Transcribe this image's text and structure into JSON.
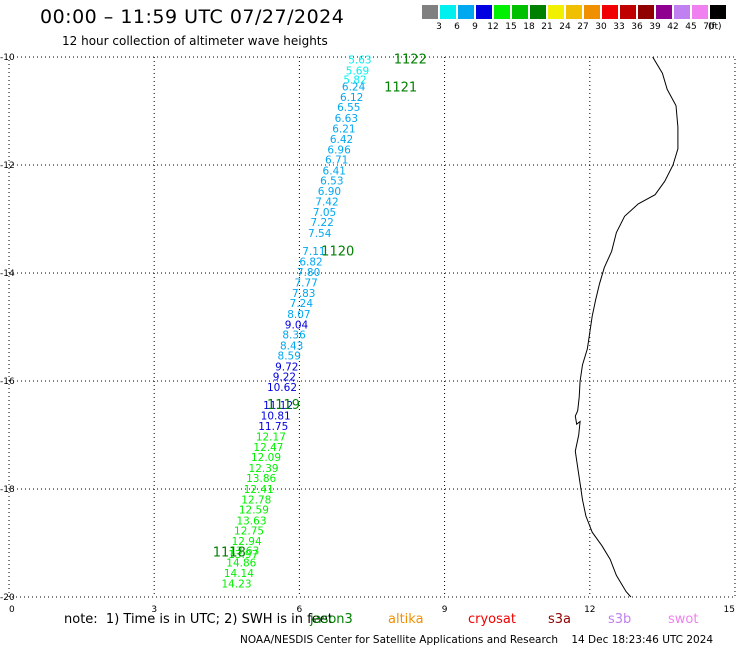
{
  "title": "00:00 – 11:59 UTC 07/27/2024",
  "subtitle": "12 hour collection of altimeter wave heights",
  "legend": {
    "colors": [
      "#808080",
      "#00f0f0",
      "#00a8f0",
      "#0000e0",
      "#00f000",
      "#00c000",
      "#008000",
      "#f0f000",
      "#f0c000",
      "#f09000",
      "#f00000",
      "#c00000",
      "#900000",
      "#900090",
      "#c080f0",
      "#f080f0",
      "#000000"
    ],
    "labels": [
      "3",
      "6",
      "9",
      "12",
      "15",
      "18",
      "21",
      "24",
      "27",
      "30",
      "33",
      "36",
      "39",
      "42",
      "45",
      "70"
    ],
    "unit": "(ft)"
  },
  "note": "note:  1) Time is in UTC; 2) SWH is in feet",
  "satellites": [
    {
      "name": "jason3",
      "color": "#008000"
    },
    {
      "name": "altika",
      "color": "#f09000"
    },
    {
      "name": "cryosat",
      "color": "#f00000"
    },
    {
      "name": "s3a",
      "color": "#900000"
    },
    {
      "name": "s3b",
      "color": "#c080f0"
    },
    {
      "name": "swot",
      "color": "#f080f0"
    }
  ],
  "credit": "NOAA/NESDIS Center for Satellite Applications and Research    14 Dec 18:23:46 UTC 2024",
  "chart_data": {
    "type": "scatter",
    "x_ticks": [
      "0",
      "3",
      "6",
      "9",
      "12",
      "15"
    ],
    "y_ticks": [
      "-10",
      "-12",
      "-14",
      "-16",
      "-18",
      "-20"
    ],
    "xlim": [
      0,
      15
    ],
    "ylim": [
      -20,
      -10
    ],
    "grid": true,
    "points": [
      {
        "lon": 7.25,
        "lat": -10.05,
        "swh": "5.63"
      },
      {
        "lon": 7.2,
        "lat": -10.25,
        "swh": "5.69"
      },
      {
        "lon": 7.15,
        "lat": -10.42,
        "swh": "5.82"
      },
      {
        "lon": 7.12,
        "lat": -10.55,
        "swh": "6.24"
      },
      {
        "lon": 7.08,
        "lat": -10.74,
        "swh": "6.12"
      },
      {
        "lon": 7.02,
        "lat": -10.93,
        "swh": "6.55"
      },
      {
        "lon": 6.97,
        "lat": -11.13,
        "swh": "6.63"
      },
      {
        "lon": 6.92,
        "lat": -11.32,
        "swh": "6.21"
      },
      {
        "lon": 6.87,
        "lat": -11.52,
        "swh": "6.42"
      },
      {
        "lon": 6.82,
        "lat": -11.71,
        "swh": "6.96"
      },
      {
        "lon": 6.77,
        "lat": -11.9,
        "swh": "6.71"
      },
      {
        "lon": 6.72,
        "lat": -12.1,
        "swh": "6.41"
      },
      {
        "lon": 6.67,
        "lat": -12.29,
        "swh": "6.53"
      },
      {
        "lon": 6.62,
        "lat": -12.48,
        "swh": "6.90"
      },
      {
        "lon": 6.57,
        "lat": -12.68,
        "swh": "7.42"
      },
      {
        "lon": 6.52,
        "lat": -12.87,
        "swh": "7.05"
      },
      {
        "lon": 6.47,
        "lat": -13.06,
        "swh": "7.22"
      },
      {
        "lon": 6.42,
        "lat": -13.26,
        "swh": "7.54"
      },
      {
        "lon": 6.3,
        "lat": -13.59,
        "swh": "7.11"
      },
      {
        "lon": 6.24,
        "lat": -13.79,
        "swh": "6.82"
      },
      {
        "lon": 6.19,
        "lat": -13.98,
        "swh": "7.80"
      },
      {
        "lon": 6.14,
        "lat": -14.18,
        "swh": "7.77"
      },
      {
        "lon": 6.09,
        "lat": -14.37,
        "swh": "7.83"
      },
      {
        "lon": 6.04,
        "lat": -14.56,
        "swh": "7.24"
      },
      {
        "lon": 5.99,
        "lat": -14.76,
        "swh": "8.07"
      },
      {
        "lon": 5.94,
        "lat": -14.95,
        "swh": "9.04"
      },
      {
        "lon": 5.89,
        "lat": -15.14,
        "swh": "8.36"
      },
      {
        "lon": 5.84,
        "lat": -15.34,
        "swh": "8.43"
      },
      {
        "lon": 5.79,
        "lat": -15.53,
        "swh": "8.59"
      },
      {
        "lon": 5.74,
        "lat": -15.73,
        "swh": "9.72"
      },
      {
        "lon": 5.69,
        "lat": -15.92,
        "swh": "9.22"
      },
      {
        "lon": 5.64,
        "lat": -16.11,
        "swh": "10.62"
      },
      {
        "lon": 5.56,
        "lat": -16.44,
        "swh": "11.12"
      },
      {
        "lon": 5.51,
        "lat": -16.64,
        "swh": "10.81"
      },
      {
        "lon": 5.46,
        "lat": -16.83,
        "swh": "11.75"
      },
      {
        "lon": 5.41,
        "lat": -17.03,
        "swh": "12.17"
      },
      {
        "lon": 5.36,
        "lat": -17.22,
        "swh": "12.47"
      },
      {
        "lon": 5.31,
        "lat": -17.41,
        "swh": "12.09"
      },
      {
        "lon": 5.26,
        "lat": -17.61,
        "swh": "12.39"
      },
      {
        "lon": 5.21,
        "lat": -17.8,
        "swh": "13.86"
      },
      {
        "lon": 5.16,
        "lat": -18.0,
        "swh": "12.41"
      },
      {
        "lon": 5.11,
        "lat": -18.19,
        "swh": "12.78"
      },
      {
        "lon": 5.06,
        "lat": -18.38,
        "swh": "12.59"
      },
      {
        "lon": 5.01,
        "lat": -18.58,
        "swh": "13.63"
      },
      {
        "lon": 4.96,
        "lat": -18.77,
        "swh": "12.75"
      },
      {
        "lon": 4.91,
        "lat": -18.96,
        "swh": "12.94"
      },
      {
        "lon": 4.86,
        "lat": -19.14,
        "swh": "13.63"
      },
      {
        "lon": 4.84,
        "lat": -19.2,
        "swh": "13.97"
      },
      {
        "lon": 4.8,
        "lat": -19.36,
        "swh": "14.86"
      },
      {
        "lon": 4.75,
        "lat": -19.56,
        "swh": "14.14"
      },
      {
        "lon": 4.7,
        "lat": -19.75,
        "swh": "14.23"
      }
    ],
    "pass_labels": [
      {
        "lon": 7.95,
        "lat": -10.03,
        "text": "1122"
      },
      {
        "lon": 7.75,
        "lat": -10.55,
        "text": "1121"
      },
      {
        "lon": 6.45,
        "lat": -13.58,
        "text": "1120"
      },
      {
        "lon": 5.33,
        "lat": -16.43,
        "text": "1119"
      },
      {
        "lon": 4.21,
        "lat": -19.16,
        "text": "1118"
      }
    ],
    "pass_label_color": "#008000",
    "coastline": [
      [
        13.3,
        -10.0
      ],
      [
        13.5,
        -10.3
      ],
      [
        13.6,
        -10.6
      ],
      [
        13.78,
        -10.9
      ],
      [
        13.82,
        -11.3
      ],
      [
        13.82,
        -11.7
      ],
      [
        13.72,
        -12.0
      ],
      [
        13.55,
        -12.3
      ],
      [
        13.35,
        -12.55
      ],
      [
        13.0,
        -12.72
      ],
      [
        12.72,
        -12.95
      ],
      [
        12.55,
        -13.25
      ],
      [
        12.45,
        -13.6
      ],
      [
        12.3,
        -13.9
      ],
      [
        12.2,
        -14.2
      ],
      [
        12.12,
        -14.5
      ],
      [
        12.05,
        -14.8
      ],
      [
        12.0,
        -15.1
      ],
      [
        11.95,
        -15.4
      ],
      [
        11.85,
        -15.7
      ],
      [
        11.8,
        -16.0
      ],
      [
        11.78,
        -16.3
      ],
      [
        11.75,
        -16.55
      ],
      [
        11.7,
        -16.65
      ],
      [
        11.73,
        -16.8
      ],
      [
        11.8,
        -16.75
      ],
      [
        11.77,
        -17.0
      ],
      [
        11.7,
        -17.3
      ],
      [
        11.75,
        -17.6
      ],
      [
        11.8,
        -17.9
      ],
      [
        11.85,
        -18.2
      ],
      [
        11.92,
        -18.5
      ],
      [
        12.05,
        -18.8
      ],
      [
        12.25,
        -19.05
      ],
      [
        12.42,
        -19.3
      ],
      [
        12.55,
        -19.6
      ],
      [
        12.75,
        -19.9
      ],
      [
        12.85,
        -20.0
      ]
    ]
  }
}
